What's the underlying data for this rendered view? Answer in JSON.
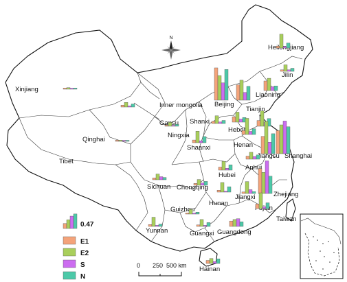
{
  "colors": {
    "E1": "#F4A37A",
    "E2": "#A9CF5B",
    "S": "#CC6CF0",
    "N": "#4CC9A8"
  },
  "legend": {
    "ref_value": "0.47",
    "items": [
      {
        "key": "E1",
        "label": "E1"
      },
      {
        "key": "E2",
        "label": "E2"
      },
      {
        "key": "S",
        "label": "S"
      },
      {
        "key": "N",
        "label": "N"
      }
    ]
  },
  "scale": {
    "labels": [
      "0",
      "250",
      "500 km"
    ]
  },
  "north_arrow": {
    "label": "N",
    "icon": "compass-rose-icon"
  },
  "provinces": [
    {
      "id": "xinjiang",
      "name": "Xinjiang",
      "values": [
        0.03,
        0.04,
        0.02,
        0.03
      ]
    },
    {
      "id": "tibet",
      "name": "Tibet",
      "values": []
    },
    {
      "id": "qinghai",
      "name": "Qinghai",
      "values": [
        0.03,
        0.03,
        0.01,
        0.02
      ]
    },
    {
      "id": "gansu",
      "name": "Gansu",
      "values": [
        0.05,
        0.12,
        0.03,
        0.08
      ]
    },
    {
      "id": "innermongolia",
      "name": "Inner mongolia",
      "values": []
    },
    {
      "id": "heilongjiang",
      "name": "Heilongjiang",
      "values": [
        0.05,
        0.36,
        0.04,
        0.13
      ]
    },
    {
      "id": "jilin",
      "name": "Jilin",
      "values": [
        0.04,
        0.17,
        0.04,
        0.08
      ]
    },
    {
      "id": "liaoning",
      "name": "Liaoning",
      "values": [
        0.25,
        0.32,
        0.1,
        0.12
      ]
    },
    {
      "id": "beijing",
      "name": "Beijing",
      "values": [
        0.84,
        0.64,
        0.45,
        0.8
      ]
    },
    {
      "id": "tianjin",
      "name": "Tianjin",
      "values": [
        0.4,
        0.52,
        0.2,
        0.36
      ]
    },
    {
      "id": "hebei",
      "name": "Hebei",
      "values": [
        0.14,
        0.26,
        0.08,
        0.12
      ]
    },
    {
      "id": "shanxi",
      "name": "Shanxi",
      "values": [
        0.06,
        0.2,
        0.04,
        0.08
      ]
    },
    {
      "id": "ningxia",
      "name": "Ningxia",
      "values": [
        0.03,
        0.1,
        0.02,
        0.05
      ]
    },
    {
      "id": "shaanxi",
      "name": "Shaanxi",
      "values": [
        0.07,
        0.3,
        0.05,
        0.16
      ]
    },
    {
      "id": "henan",
      "name": "Henan",
      "values": [
        0.1,
        0.42,
        0.08,
        0.15
      ]
    },
    {
      "id": "shandong",
      "name": "Shandong",
      "values": [
        0.15,
        0.4,
        0.1,
        0.2
      ]
    },
    {
      "id": "jiangsu",
      "name": "Jiangsu",
      "values": [
        0.45,
        0.84,
        0.3,
        0.52
      ]
    },
    {
      "id": "shanghai",
      "name": "Shanghai",
      "values": [
        0.6,
        0.75,
        0.85,
        0.7
      ]
    },
    {
      "id": "anhui",
      "name": "Anhui",
      "values": [
        0.08,
        0.18,
        0.07,
        0.11
      ]
    },
    {
      "id": "hubei",
      "name": "Hubei",
      "values": [
        0.08,
        0.23,
        0.05,
        0.14
      ]
    },
    {
      "id": "zhejiang",
      "name": "Zhejiang",
      "values": [
        0.65,
        0.55,
        0.85,
        0.45
      ]
    },
    {
      "id": "fujian",
      "name": "Fujian",
      "values": [
        0.12,
        0.41,
        0.05,
        0.15
      ]
    },
    {
      "id": "jiangxi",
      "name": "Jiangxi",
      "values": [
        0.04,
        0.31,
        0.1,
        0.05
      ]
    },
    {
      "id": "hunan",
      "name": "Hunan",
      "values": [
        0.05,
        0.25,
        0.02,
        0.14
      ]
    },
    {
      "id": "chongqing",
      "name": "Chongqing",
      "values": [
        0.05,
        0.15,
        0.06,
        0.1
      ]
    },
    {
      "id": "sichuan",
      "name": "Sichuan",
      "values": [
        0.05,
        0.15,
        0.08,
        0.06
      ]
    },
    {
      "id": "guizhou",
      "name": "Guizhou",
      "values": [
        0.03,
        0.12,
        0.02,
        0.05
      ]
    },
    {
      "id": "yunnan",
      "name": "Yunnan",
      "values": [
        0.05,
        0.24,
        0.03,
        0.06
      ]
    },
    {
      "id": "guangxi",
      "name": "Guangxi",
      "values": [
        0.04,
        0.18,
        0.03,
        0.1
      ]
    },
    {
      "id": "guangdong",
      "name": "Guangdong",
      "values": [
        0.14,
        0.18,
        0.2,
        0.12
      ]
    },
    {
      "id": "hainan",
      "name": "Hainan",
      "values": [
        0.08,
        0.13,
        0.05,
        0.12
      ]
    },
    {
      "id": "taiwan",
      "name": "Taiwan",
      "values": []
    }
  ]
}
